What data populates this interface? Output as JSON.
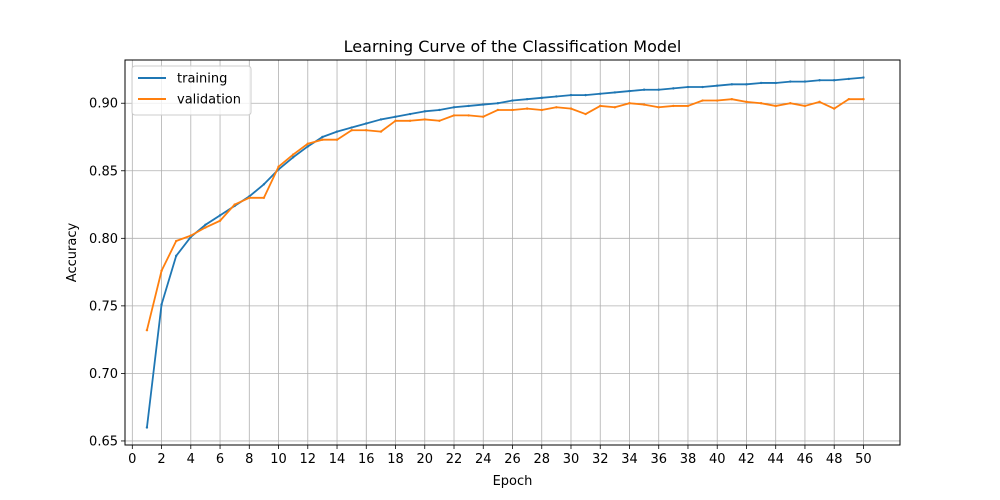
{
  "chart_data": {
    "type": "line",
    "title": "Learning Curve of the Classification Model",
    "xlabel": "Epoch",
    "ylabel": "Accuracy",
    "xlim": [
      -0.5,
      52.5
    ],
    "ylim": [
      0.647,
      0.932
    ],
    "xticks": [
      0,
      2,
      4,
      6,
      8,
      10,
      12,
      14,
      16,
      18,
      20,
      22,
      24,
      26,
      28,
      30,
      32,
      34,
      36,
      38,
      40,
      42,
      44,
      46,
      48,
      50
    ],
    "xtick_labels": [
      "0",
      "2",
      "4",
      "6",
      "8",
      "10",
      "12",
      "14",
      "16",
      "18",
      "20",
      "22",
      "24",
      "26",
      "28",
      "30",
      "32",
      "34",
      "36",
      "38",
      "40",
      "42",
      "44",
      "46",
      "48",
      "50"
    ],
    "yticks": [
      0.65,
      0.7,
      0.75,
      0.8,
      0.85,
      0.9
    ],
    "ytick_labels": [
      "0.65",
      "0.70",
      "0.75",
      "0.80",
      "0.85",
      "0.90"
    ],
    "grid": true,
    "legend_position": "top-left",
    "x": [
      1,
      2,
      3,
      4,
      5,
      6,
      7,
      8,
      9,
      10,
      11,
      12,
      13,
      14,
      15,
      16,
      17,
      18,
      19,
      20,
      21,
      22,
      23,
      24,
      25,
      26,
      27,
      28,
      29,
      30,
      31,
      32,
      33,
      34,
      35,
      36,
      37,
      38,
      39,
      40,
      41,
      42,
      43,
      44,
      45,
      46,
      47,
      48,
      49,
      50
    ],
    "series": [
      {
        "name": "training",
        "color": "#1f77b4",
        "values": [
          0.66,
          0.751,
          0.787,
          0.801,
          0.81,
          0.817,
          0.824,
          0.831,
          0.84,
          0.851,
          0.86,
          0.868,
          0.875,
          0.879,
          0.882,
          0.885,
          0.888,
          0.89,
          0.892,
          0.894,
          0.895,
          0.897,
          0.898,
          0.899,
          0.9,
          0.902,
          0.903,
          0.904,
          0.905,
          0.906,
          0.906,
          0.907,
          0.908,
          0.909,
          0.91,
          0.91,
          0.911,
          0.912,
          0.912,
          0.913,
          0.914,
          0.914,
          0.915,
          0.915,
          0.916,
          0.916,
          0.917,
          0.917,
          0.918,
          0.919
        ]
      },
      {
        "name": "validation",
        "color": "#ff7f0e",
        "values": [
          0.732,
          0.776,
          0.798,
          0.802,
          0.808,
          0.813,
          0.825,
          0.83,
          0.83,
          0.853,
          0.862,
          0.87,
          0.873,
          0.873,
          0.88,
          0.88,
          0.879,
          0.887,
          0.887,
          0.888,
          0.887,
          0.891,
          0.891,
          0.89,
          0.895,
          0.895,
          0.896,
          0.895,
          0.897,
          0.896,
          0.892,
          0.898,
          0.897,
          0.9,
          0.899,
          0.897,
          0.898,
          0.898,
          0.902,
          0.902,
          0.903,
          0.901,
          0.9,
          0.898,
          0.9,
          0.898,
          0.901,
          0.896,
          0.903,
          0.903
        ]
      }
    ]
  }
}
